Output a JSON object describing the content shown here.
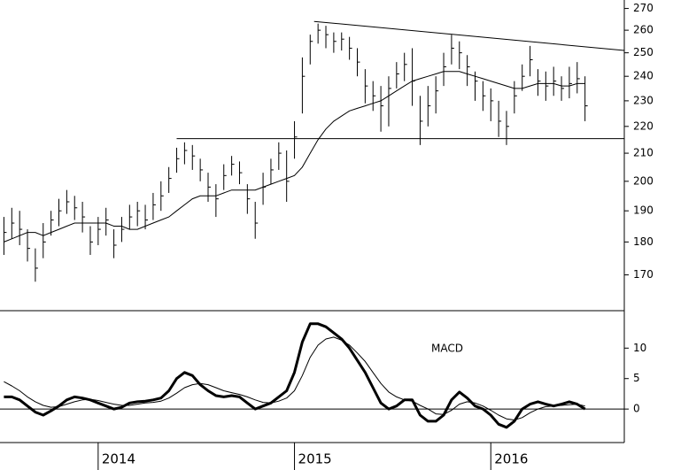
{
  "chart_data": [
    {
      "type": "ohlc",
      "x": [
        2013.52,
        2013.56,
        2013.6,
        2013.64,
        2013.68,
        2013.72,
        2013.76,
        2013.8,
        2013.84,
        2013.88,
        2013.92,
        2013.96,
        2014.0,
        2014.04,
        2014.08,
        2014.12,
        2014.16,
        2014.2,
        2014.24,
        2014.28,
        2014.32,
        2014.36,
        2014.4,
        2014.44,
        2014.48,
        2014.52,
        2014.56,
        2014.6,
        2014.64,
        2014.68,
        2014.72,
        2014.76,
        2014.8,
        2014.84,
        2014.88,
        2014.92,
        2014.96,
        2015.0,
        2015.04,
        2015.08,
        2015.12,
        2015.16,
        2015.2,
        2015.24,
        2015.28,
        2015.32,
        2015.36,
        2015.4,
        2015.44,
        2015.48,
        2015.52,
        2015.56,
        2015.6,
        2015.64,
        2015.68,
        2015.72,
        2015.76,
        2015.8,
        2015.84,
        2015.88,
        2015.92,
        2015.96,
        2016.0,
        2016.04,
        2016.08,
        2016.12,
        2016.16,
        2016.2,
        2016.24,
        2016.28,
        2016.32,
        2016.36,
        2016.4,
        2016.44,
        2016.48
      ],
      "high": [
        188,
        191,
        190,
        184,
        178,
        186,
        190,
        194,
        197,
        195,
        193,
        185,
        188,
        191,
        184,
        188,
        192,
        193,
        192,
        196,
        200,
        205,
        212,
        214,
        213,
        208,
        203,
        199,
        206,
        209,
        207,
        199,
        193,
        203,
        208,
        214,
        211,
        222,
        248,
        258,
        263,
        262,
        259,
        259,
        257,
        252,
        243,
        238,
        236,
        240,
        246,
        250,
        252,
        232,
        236,
        240,
        250,
        258,
        255,
        249,
        242,
        238,
        235,
        230,
        226,
        238,
        245,
        253,
        243,
        242,
        244,
        240,
        244,
        246,
        240
      ],
      "low": [
        176,
        181,
        179,
        174,
        168,
        175,
        182,
        185,
        189,
        187,
        183,
        176,
        179,
        182,
        175,
        180,
        184,
        185,
        184,
        187,
        190,
        196,
        203,
        206,
        204,
        200,
        193,
        188,
        197,
        202,
        199,
        189,
        181,
        192,
        199,
        204,
        193,
        208,
        225,
        245,
        254,
        252,
        250,
        251,
        247,
        240,
        229,
        226,
        218,
        220,
        235,
        238,
        228,
        213,
        220,
        225,
        236,
        245,
        243,
        236,
        230,
        226,
        222,
        216,
        213,
        225,
        234,
        240,
        232,
        230,
        232,
        230,
        231,
        233,
        222
      ],
      "close": [
        183,
        186,
        184,
        178,
        172,
        180,
        187,
        190,
        193,
        191,
        188,
        180,
        184,
        187,
        179,
        184,
        188,
        190,
        187,
        192,
        195,
        201,
        208,
        211,
        209,
        204,
        198,
        194,
        202,
        206,
        203,
        194,
        186,
        198,
        204,
        210,
        200,
        216,
        240,
        255,
        260,
        258,
        255,
        256,
        252,
        246,
        236,
        232,
        228,
        235,
        241,
        245,
        238,
        222,
        228,
        234,
        244,
        252,
        250,
        244,
        238,
        232,
        230,
        222,
        220,
        232,
        240,
        247,
        238,
        236,
        238,
        235,
        237,
        239,
        228
      ],
      "ma": {
        "color": "#000000",
        "values": [
          180,
          181,
          182,
          183,
          183,
          182,
          183,
          184,
          185,
          186,
          186,
          186,
          186,
          186,
          185,
          185,
          184,
          184,
          185,
          186,
          187,
          188,
          190,
          192,
          194,
          195,
          195,
          195,
          196,
          197,
          197,
          197,
          197,
          198,
          199,
          200,
          201,
          202,
          205,
          210,
          215,
          219,
          222,
          224,
          226,
          227,
          228,
          229,
          230,
          232,
          234,
          236,
          238,
          239,
          240,
          241,
          242,
          242,
          242,
          241,
          240,
          239,
          238,
          237,
          236,
          235,
          235,
          236,
          237,
          237,
          237,
          236,
          236,
          237,
          237
        ]
      },
      "lines": [
        {
          "x": [
            2015.1,
            2016.68
          ],
          "y": [
            264,
            251
          ]
        },
        {
          "x": [
            2014.4,
            2016.68
          ],
          "y": [
            215.4,
            215.4
          ]
        }
      ],
      "color": "#000000",
      "log_y": true,
      "xlim": [
        2013.5,
        2016.68
      ],
      "xticks": [
        2014,
        2015,
        2016
      ],
      "ylim": [
        160,
        274
      ],
      "yticks": [
        170,
        180,
        190,
        200,
        210,
        220,
        230,
        240,
        250,
        260,
        270
      ]
    },
    {
      "type": "line",
      "label": "MACD",
      "series": [
        {
          "color": "#000000",
          "width": 3,
          "values": [
            2,
            2,
            1.5,
            0.5,
            -0.5,
            -1,
            -0.3,
            0.5,
            1.5,
            2,
            1.8,
            1.5,
            1,
            0.5,
            0,
            0.3,
            1,
            1.2,
            1.3,
            1.5,
            1.8,
            3,
            5,
            6,
            5.5,
            4,
            3,
            2.2,
            2,
            2.2,
            2,
            1,
            0,
            0.5,
            1,
            2,
            3,
            6,
            11,
            14,
            14,
            13.5,
            12.5,
            11.5,
            10,
            8,
            6,
            3.5,
            1,
            0,
            0.5,
            1.5,
            1.5,
            -1,
            -2,
            -2,
            -1,
            1.5,
            2.8,
            1.8,
            0.5,
            0,
            -1,
            -2.5,
            -3,
            -2,
            0,
            0.8,
            1.2,
            0.8,
            0.5,
            0.8,
            1.2,
            0.8,
            0
          ]
        },
        {
          "color": "#000000",
          "width": 1,
          "values": [
            4.5,
            3.8,
            3,
            2,
            1.2,
            0.6,
            0.3,
            0.4,
            0.8,
            1.2,
            1.5,
            1.6,
            1.4,
            1.1,
            0.8,
            0.6,
            0.6,
            0.8,
            1,
            1.1,
            1.3,
            1.8,
            2.6,
            3.5,
            4,
            4.2,
            4,
            3.5,
            3,
            2.7,
            2.4,
            2,
            1.5,
            1.1,
            1,
            1.3,
            1.8,
            3,
            5.5,
            8.5,
            10.5,
            11.5,
            11.8,
            11.3,
            10.5,
            9.2,
            7.8,
            6,
            4.2,
            2.8,
            2,
            1.5,
            1.3,
            0.6,
            0,
            -0.8,
            -0.9,
            -0.2,
            0.8,
            1.2,
            1,
            0.5,
            -0.2,
            -1,
            -1.6,
            -1.8,
            -1.4,
            -0.6,
            0,
            0.4,
            0.5,
            0.6,
            0.7,
            0.8,
            0.5
          ]
        }
      ],
      "ylim": [
        -5.5,
        16
      ],
      "yticks": [
        0,
        5,
        10
      ]
    }
  ]
}
